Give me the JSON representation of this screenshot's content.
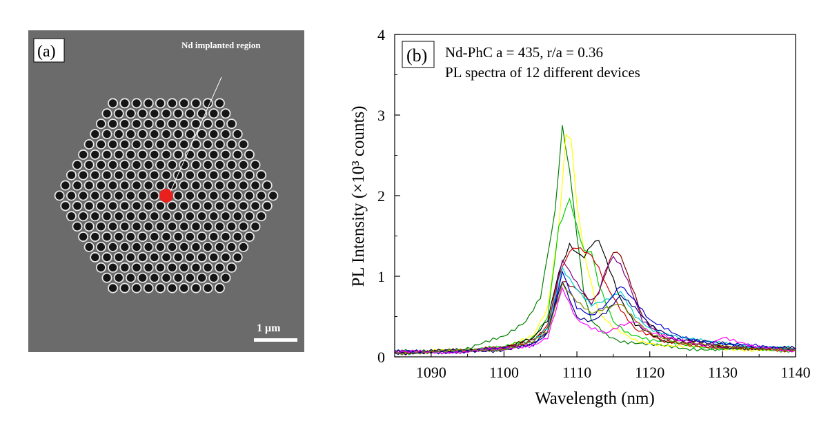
{
  "panel_a": {
    "label": "(a)",
    "annotation": "Nd implanted region",
    "scalebar_label": "1 μm",
    "marker_color": "#e8201e"
  },
  "panel_b": {
    "label": "(b)",
    "legend_line1": "Nd-PhC a = 435, r/a = 0.36",
    "legend_line2": "PL spectra of 12 different devices"
  },
  "chart_data": {
    "type": "line",
    "xlabel": "Wavelength (nm)",
    "ylabel": "PL Intensity (×10³ counts)",
    "xlim": [
      1085,
      1140
    ],
    "ylim": [
      0,
      4
    ],
    "xticks": [
      1090,
      1100,
      1110,
      1120,
      1130,
      1140
    ],
    "yticks": [
      0,
      1,
      2,
      3,
      4
    ],
    "series": [
      {
        "color": "#008000",
        "x": [
          1085,
          1090,
          1095,
          1100,
          1103,
          1105,
          1107,
          1108,
          1109,
          1110,
          1111,
          1112,
          1114,
          1116,
          1120,
          1125,
          1130,
          1135,
          1140
        ],
        "y": [
          0.06,
          0.07,
          0.1,
          0.25,
          0.45,
          0.75,
          1.8,
          2.85,
          2.3,
          1.5,
          0.75,
          0.45,
          0.28,
          0.2,
          0.15,
          0.1,
          0.1,
          0.1,
          0.1
        ]
      },
      {
        "color": "#ffff00",
        "x": [
          1085,
          1090,
          1095,
          1100,
          1104,
          1106,
          1107.5,
          1108.5,
          1109.2,
          1110,
          1111,
          1112,
          1113,
          1115,
          1118,
          1122,
          1130,
          1140
        ],
        "y": [
          0.06,
          0.07,
          0.08,
          0.12,
          0.25,
          0.6,
          1.6,
          2.75,
          2.7,
          1.9,
          1.3,
          0.9,
          0.55,
          0.35,
          0.2,
          0.15,
          0.1,
          0.08
        ]
      },
      {
        "color": "#00cc00",
        "x": [
          1085,
          1090,
          1095,
          1100,
          1104,
          1106,
          1107.5,
          1109,
          1110,
          1111,
          1112,
          1113,
          1115,
          1117,
          1120,
          1125,
          1130,
          1140
        ],
        "y": [
          0.05,
          0.06,
          0.08,
          0.12,
          0.25,
          0.5,
          1.6,
          1.95,
          1.6,
          1.3,
          1.3,
          0.9,
          0.45,
          0.3,
          0.2,
          0.15,
          0.1,
          0.08
        ]
      },
      {
        "color": "#000000",
        "x": [
          1085,
          1090,
          1095,
          1100,
          1104,
          1106,
          1107.5,
          1109,
          1110,
          1111,
          1112,
          1113,
          1114,
          1116,
          1118,
          1122,
          1130,
          1140
        ],
        "y": [
          0.06,
          0.07,
          0.08,
          0.12,
          0.22,
          0.45,
          1.05,
          1.4,
          1.3,
          1.25,
          1.4,
          1.45,
          1.2,
          0.7,
          0.4,
          0.2,
          0.12,
          0.1
        ]
      },
      {
        "color": "#cc0000",
        "x": [
          1085,
          1090,
          1095,
          1100,
          1104,
          1106,
          1107.5,
          1109,
          1110,
          1111,
          1112,
          1113,
          1114,
          1116,
          1118,
          1122,
          1130,
          1140
        ],
        "y": [
          0.05,
          0.06,
          0.08,
          0.11,
          0.2,
          0.4,
          1.0,
          1.3,
          1.35,
          1.3,
          1.25,
          1.1,
          0.9,
          0.6,
          0.35,
          0.18,
          0.12,
          0.08
        ]
      },
      {
        "color": "#800000",
        "x": [
          1085,
          1090,
          1095,
          1100,
          1104,
          1106,
          1108,
          1110,
          1112,
          1113,
          1114,
          1115,
          1116,
          1117,
          1119,
          1122,
          1130,
          1140
        ],
        "y": [
          0.06,
          0.06,
          0.08,
          0.11,
          0.2,
          0.35,
          0.95,
          0.85,
          0.7,
          0.8,
          1.05,
          1.3,
          1.25,
          1.0,
          0.5,
          0.25,
          0.12,
          0.1
        ]
      },
      {
        "color": "#800080",
        "x": [
          1085,
          1090,
          1095,
          1100,
          1104,
          1106,
          1108,
          1110,
          1112,
          1113,
          1114,
          1115,
          1116,
          1117,
          1119,
          1122,
          1130,
          1140
        ],
        "y": [
          0.06,
          0.06,
          0.07,
          0.1,
          0.18,
          0.32,
          1.2,
          0.9,
          0.65,
          0.8,
          1.1,
          1.25,
          1.15,
          0.95,
          0.45,
          0.22,
          0.12,
          0.1
        ]
      },
      {
        "color": "#00cccc",
        "x": [
          1085,
          1090,
          1095,
          1100,
          1104,
          1106,
          1108,
          1110,
          1112,
          1114,
          1116,
          1118,
          1120,
          1124,
          1128,
          1132,
          1136,
          1140
        ],
        "y": [
          0.05,
          0.06,
          0.08,
          0.1,
          0.18,
          0.35,
          1.1,
          0.85,
          0.65,
          0.7,
          0.8,
          0.5,
          0.35,
          0.25,
          0.18,
          0.15,
          0.12,
          0.1
        ]
      },
      {
        "color": "#0000cc",
        "x": [
          1085,
          1090,
          1095,
          1100,
          1104,
          1106,
          1108,
          1110,
          1112,
          1114,
          1116,
          1118,
          1120,
          1124,
          1128,
          1132,
          1136,
          1140
        ],
        "y": [
          0.06,
          0.06,
          0.07,
          0.1,
          0.16,
          0.3,
          1.05,
          0.6,
          0.5,
          0.65,
          0.9,
          0.7,
          0.45,
          0.25,
          0.18,
          0.15,
          0.12,
          0.1
        ]
      },
      {
        "color": "#000080",
        "x": [
          1085,
          1090,
          1095,
          1100,
          1104,
          1106,
          1108,
          1110,
          1112,
          1114,
          1116,
          1118,
          1120,
          1124,
          1128,
          1132,
          1136,
          1140
        ],
        "y": [
          0.05,
          0.06,
          0.07,
          0.09,
          0.15,
          0.3,
          0.95,
          0.5,
          0.45,
          0.55,
          0.75,
          0.6,
          0.4,
          0.22,
          0.18,
          0.15,
          0.12,
          0.1
        ]
      },
      {
        "color": "#ff00ff",
        "x": [
          1085,
          1090,
          1095,
          1100,
          1104,
          1106,
          1108,
          1110,
          1112,
          1114,
          1116,
          1118,
          1120,
          1124,
          1128,
          1130,
          1134,
          1140
        ],
        "y": [
          0.05,
          0.06,
          0.07,
          0.09,
          0.15,
          0.25,
          0.85,
          0.45,
          0.35,
          0.3,
          0.4,
          0.45,
          0.3,
          0.2,
          0.15,
          0.25,
          0.12,
          0.08
        ]
      },
      {
        "color": "#808000",
        "x": [
          1085,
          1090,
          1095,
          1100,
          1104,
          1106,
          1108,
          1110,
          1112,
          1114,
          1116,
          1118,
          1120,
          1124,
          1128,
          1132,
          1136,
          1140
        ],
        "y": [
          0.05,
          0.06,
          0.08,
          0.1,
          0.18,
          0.3,
          0.9,
          0.7,
          0.55,
          0.6,
          0.65,
          0.45,
          0.3,
          0.18,
          0.14,
          0.12,
          0.1,
          0.08
        ]
      }
    ]
  }
}
